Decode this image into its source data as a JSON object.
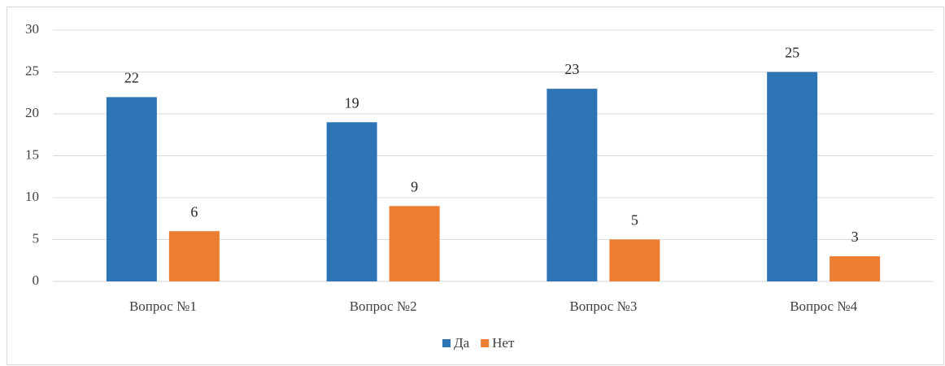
{
  "chart_data": {
    "type": "bar",
    "categories": [
      "Вопрос №1",
      "Вопрос №2",
      "Вопрос №3",
      "Вопрос №4"
    ],
    "series": [
      {
        "name": "Да",
        "color": "#2e75b6",
        "values": [
          22,
          19,
          23,
          25
        ]
      },
      {
        "name": "Нет",
        "color": "#ed7d31",
        "values": [
          6,
          9,
          5,
          3
        ]
      }
    ],
    "ylim": [
      0,
      30
    ],
    "yticks": [
      0,
      5,
      10,
      15,
      20,
      25,
      30
    ],
    "grid": true,
    "legend": "bottom"
  }
}
